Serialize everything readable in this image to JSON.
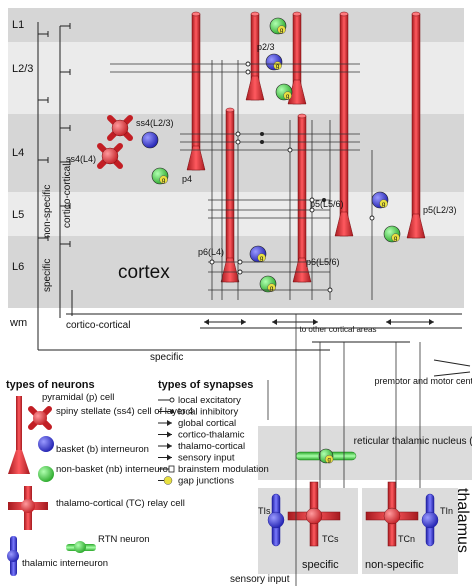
{
  "layers": {
    "l1": "L1",
    "l23": "L2/3",
    "l4": "L4",
    "l5": "L5",
    "l6": "L6",
    "wm": "wm",
    "cortex": "cortex"
  },
  "labels": {
    "p23": "p2/3",
    "ss4_l23": "ss4(L2/3)",
    "ss4_l4": "ss4(L4)",
    "p4": "p4",
    "p5_l56": "p5(L5/6)",
    "p5_l23": "p5(L2/3)",
    "p6_l4": "p6(L4)",
    "p6_l56": "p6(L5/6)",
    "nonspecific_vertical": "non-specific",
    "specific_vertical": "specific",
    "cortico_cortical_vertical": "cortico-cortical",
    "cortico_cortical_bottom": "cortico-cortical",
    "specific_mid": "specific",
    "to_other_areas": "to other cortical areas",
    "premotor": "premotor and motor centers",
    "rtn": "reticular thalamic nucleus (RTN)",
    "thalamus": "thalamus",
    "tis": "TIs",
    "tcs": "TCs",
    "tcn": "TCn",
    "tin": "TIn",
    "specific_box": "specific",
    "nonspecific_box": "non-specific",
    "sensory_input": "sensory input",
    "gap": "g"
  },
  "neuron_legend": {
    "title": "types of neurons",
    "items": [
      "pyramidal (p) cell",
      "spiny stellate (ss4) cell of layer 4",
      "basket (b) interneuron",
      "non-basket (nb) interneuron",
      "thalamo-cortical (TC) relay cell",
      "RTN neuron",
      "thalamic interneuron"
    ]
  },
  "synapse_legend": {
    "title": "types of synapses",
    "items": [
      "local excitatory",
      "local inhibitory",
      "global cortical",
      "cortico-thalamic",
      "thalamo-cortical",
      "sensory input",
      "brainstem modulation",
      "gap junctions"
    ]
  },
  "colors": {
    "pyramidal": "#e8333a",
    "basket": "#4a4adf",
    "nonbasket": "#44d044",
    "gap": "#e8e040",
    "band_dark": "#d4d4d4",
    "band_light": "#eaeaea"
  }
}
